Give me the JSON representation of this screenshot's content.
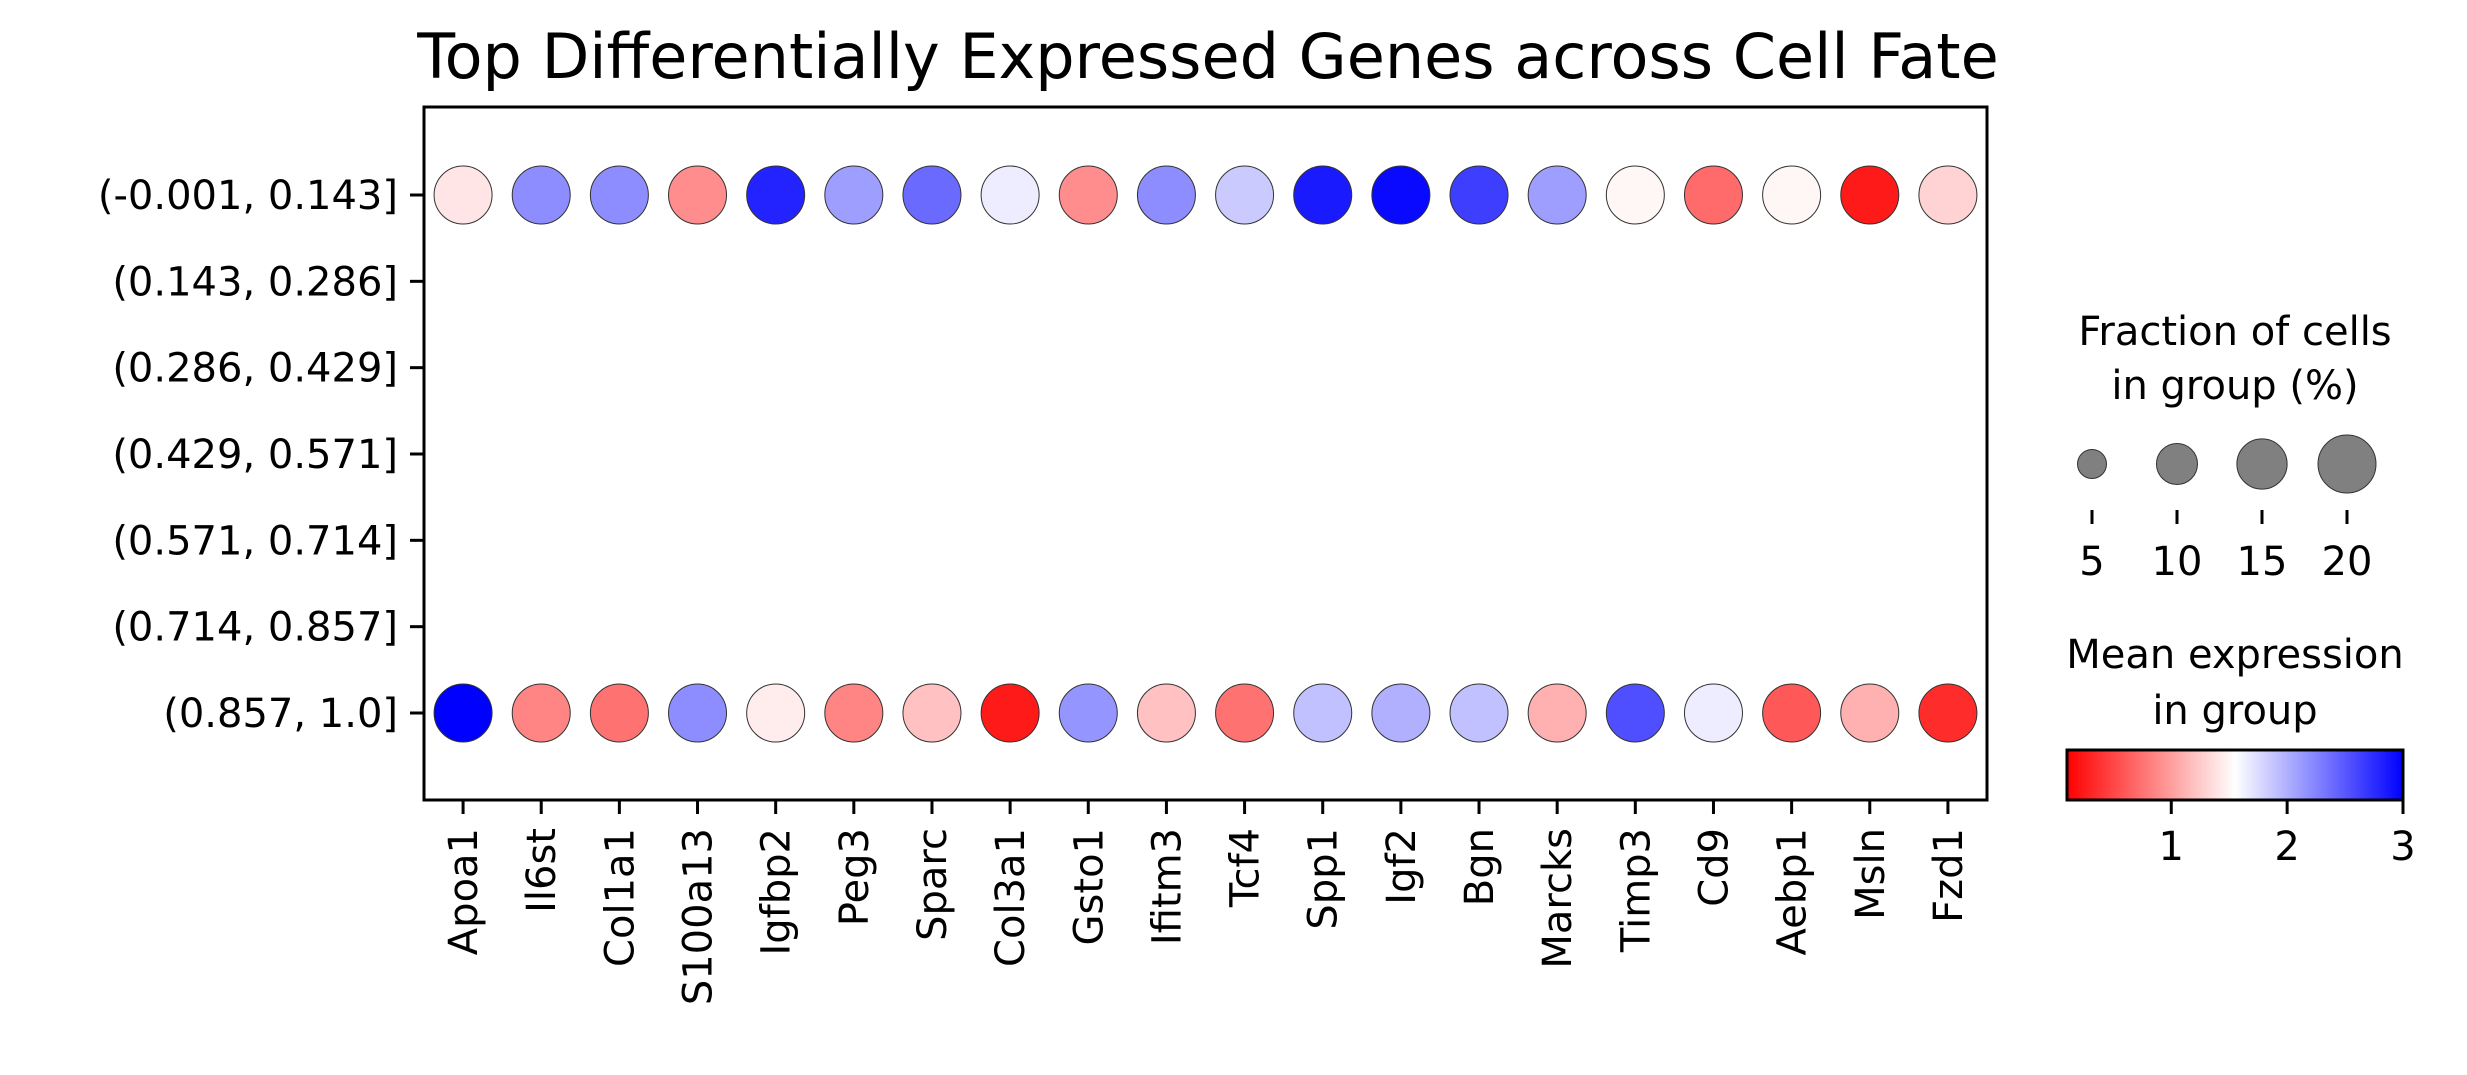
{
  "chart_data": {
    "type": "dotplot",
    "title": "Top Differentially Expressed Genes across Cell Fate",
    "xlabel": "",
    "ylabel": "",
    "genes": [
      "Apoa1",
      "Il6st",
      "Col1a1",
      "S100a13",
      "Igfbp2",
      "Peg3",
      "Sparc",
      "Col3a1",
      "Gsto1",
      "Ifitm3",
      "Tcf4",
      "Spp1",
      "Igf2",
      "Bgn",
      "Marcks",
      "Timp3",
      "Cd9",
      "Aebp1",
      "Msln",
      "Fzd1"
    ],
    "groups": [
      "(-0.001, 0.143]",
      "(0.143, 0.286]",
      "(0.286, 0.429]",
      "(0.429, 0.571]",
      "(0.571, 0.714]",
      "(0.714, 0.857]",
      "(0.857, 1.0]"
    ],
    "mean_expression": [
      [
        1.4,
        2.2,
        2.2,
        0.9,
        2.8,
        2.1,
        2.4,
        1.65,
        0.9,
        2.2,
        1.85,
        2.85,
        2.95,
        2.65,
        2.1,
        1.5,
        0.7,
        1.5,
        0.25,
        1.3
      ],
      null,
      null,
      null,
      null,
      null,
      [
        3.0,
        0.85,
        0.75,
        2.2,
        1.45,
        0.85,
        1.2,
        0.25,
        2.15,
        1.2,
        0.75,
        1.9,
        2.0,
        1.9,
        1.1,
        2.55,
        1.65,
        0.6,
        1.1,
        0.35
      ]
    ],
    "fraction_in_group": [
      [
        20,
        20,
        20,
        20,
        20,
        20,
        20,
        20,
        20,
        20,
        20,
        20,
        20,
        20,
        20,
        20,
        20,
        20,
        20,
        20
      ],
      null,
      null,
      null,
      null,
      null,
      [
        20,
        20,
        20,
        20,
        20,
        20,
        20,
        20,
        20,
        20,
        20,
        20,
        20,
        20,
        20,
        20,
        20,
        20,
        20,
        20
      ]
    ],
    "size_legend": {
      "title": [
        "Fraction of cells",
        "in group (%)"
      ],
      "values": [
        5,
        10,
        15,
        20
      ],
      "labels": [
        "5",
        "10",
        "15",
        "20"
      ]
    },
    "color_legend": {
      "title": [
        "Mean expression",
        "in group"
      ],
      "range": [
        0.1,
        3.0
      ],
      "ticks": [
        1,
        2,
        3
      ],
      "tick_labels": [
        "1",
        "2",
        "3"
      ],
      "colormap": [
        "#ff0000",
        "#ffffff",
        "#0000ff"
      ]
    }
  }
}
